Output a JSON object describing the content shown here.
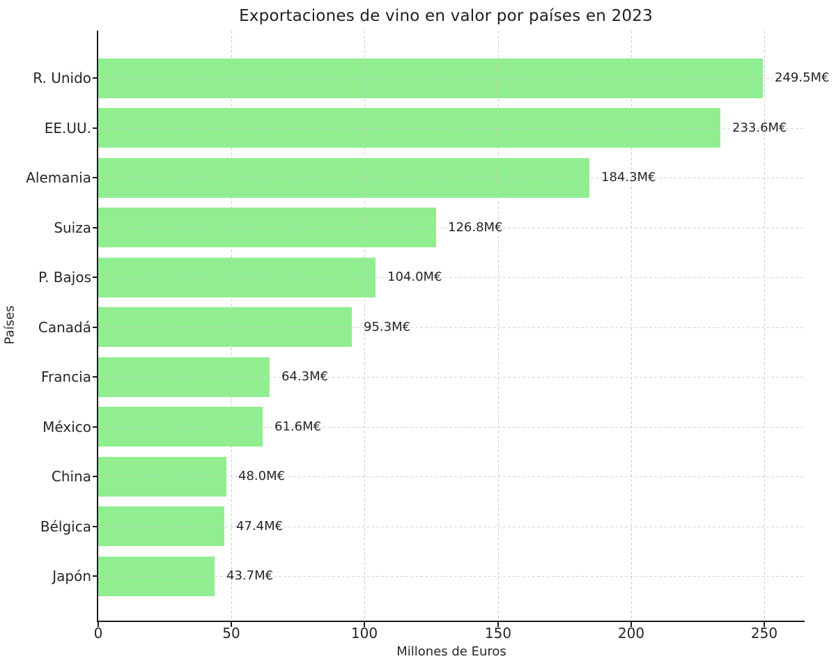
{
  "chart_data": {
    "type": "bar",
    "orientation": "horizontal",
    "title": "Exportaciones de vino en valor por países en 2023",
    "xlabel": "Millones de Euros",
    "ylabel": "Países",
    "categories": [
      "R. Unido",
      "EE.UU.",
      "Alemania",
      "Suiza",
      "P. Bajos",
      "Canadá",
      "Francia",
      "México",
      "China",
      "Bélgica",
      "Japón"
    ],
    "values": [
      249.5,
      233.6,
      184.3,
      126.8,
      104.0,
      95.3,
      64.3,
      61.6,
      48.0,
      47.4,
      43.7
    ],
    "value_labels": [
      "249.5M€",
      "233.6M€",
      "184.3M€",
      "126.8M€",
      "104.0M€",
      "95.3M€",
      "64.3M€",
      "61.6M€",
      "48.0M€",
      "47.4M€",
      "43.7M€"
    ],
    "x_ticks": [
      0,
      50,
      100,
      150,
      200,
      250
    ],
    "xlim": [
      0,
      265
    ],
    "grid": true,
    "grid_style": "dashed",
    "bar_color": "#90EE90",
    "grid_color": "#c9c9c9",
    "text_color": "#262626",
    "legend": "none"
  }
}
